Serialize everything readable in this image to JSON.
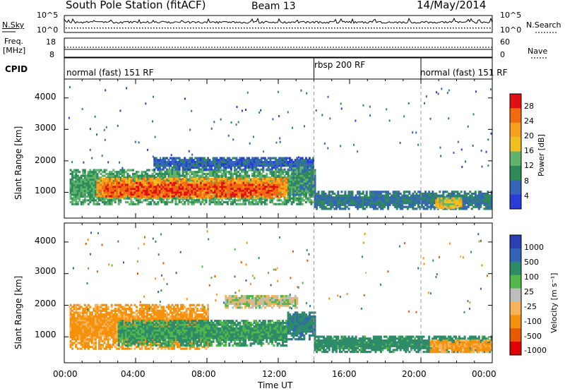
{
  "header": {
    "station": "South Pole Station (fitACF)",
    "beam": "Beam 13",
    "date": "14/May/2014"
  },
  "strips": {
    "nsky_label": "N.Sky",
    "nsearch_label": "N.Search",
    "freq_label_1": "Freq.",
    "freq_label_2": "[MHz]",
    "nave_label": "Nave",
    "cpid_label": "CPID",
    "nsky_ticks": [
      "10^5",
      "10^0"
    ],
    "nsearch_ticks": [
      "10^5",
      "10^0"
    ],
    "freq_ticks": [
      "18",
      "8"
    ],
    "nave_ticks": [
      "60",
      "0"
    ],
    "cpid_segments": [
      {
        "label": "normal (fast) 151 RF",
        "start_hour": 0,
        "end_hour": 14
      },
      {
        "label": "rbsp 200 RF",
        "start_hour": 14,
        "end_hour": 20
      },
      {
        "label": "normal (fast) 151 RF",
        "start_hour": 20,
        "end_hour": 24
      }
    ]
  },
  "axes": {
    "ylabel": "Slant Range [km]",
    "xlabel": "Time UT",
    "xticks": [
      "00:00",
      "04:00",
      "08:00",
      "12:00",
      "16:00",
      "20:00",
      "00:00"
    ],
    "yticks": [
      "1000",
      "2000",
      "3000",
      "4000"
    ]
  },
  "colorbars": {
    "power_label": "Power [dB]",
    "power_ticks": [
      "4",
      "8",
      "12",
      "16",
      "20",
      "24",
      "28"
    ],
    "velocity_label": "Velocity  [m s⁻¹]",
    "velocity_ticks": [
      "1000",
      "500",
      "100",
      "25",
      "-25",
      "-100",
      "-500",
      "-1000"
    ]
  },
  "colors": {
    "power_scale": [
      "#2a3cd8",
      "#3465b8",
      "#2f8a5a",
      "#5fb36a",
      "#f0c020",
      "#f7a020",
      "#f26a10",
      "#e01010"
    ],
    "velocity_scale": [
      "#e00000",
      "#e85a00",
      "#f5910a",
      "#f7b25a",
      "#bdbdbd",
      "#52b64a",
      "#2e8b6a",
      "#3462b8",
      "#2a3fb3"
    ]
  },
  "chart_data": [
    {
      "type": "heatmap",
      "title": "",
      "quantity": "Power [dB]",
      "xlabel": "Time UT",
      "ylabel": "Slant Range [km]",
      "x_range_hours": [
        0,
        24
      ],
      "y_range_km": [
        180,
        4600
      ],
      "color_range": [
        0,
        32
      ],
      "color_ticks": [
        4,
        8,
        12,
        16,
        20,
        24,
        28
      ],
      "x_ticks": [
        "00:00",
        "04:00",
        "08:00",
        "12:00",
        "16:00",
        "20:00",
        "00:00"
      ],
      "y_ticks": [
        1000,
        2000,
        3000,
        4000
      ],
      "regions": [
        {
          "t0": 0.3,
          "t1": 14.0,
          "r0": 600,
          "r1": 1700,
          "dB": 12
        },
        {
          "t0": 1.8,
          "t1": 12.4,
          "r0": 800,
          "r1": 1450,
          "dB": 22
        },
        {
          "t0": 2.2,
          "t1": 12.0,
          "r0": 850,
          "r1": 1300,
          "dB": 27
        },
        {
          "t0": 5.0,
          "t1": 13.9,
          "r0": 1700,
          "r1": 2100,
          "dB": 6
        },
        {
          "t0": 12.8,
          "t1": 14.0,
          "r0": 900,
          "r1": 1800,
          "dB": 10
        },
        {
          "t0": 14.0,
          "t1": 24.0,
          "r0": 450,
          "r1": 1000,
          "dB": 8
        },
        {
          "t0": 20.8,
          "t1": 22.3,
          "r0": 480,
          "r1": 800,
          "dB": 18
        }
      ]
    },
    {
      "type": "heatmap",
      "title": "",
      "quantity": "Velocity [m s^-1]",
      "xlabel": "Time UT",
      "ylabel": "Slant Range [km]",
      "x_range_hours": [
        0,
        24
      ],
      "y_range_km": [
        180,
        4600
      ],
      "color_ticks": [
        1000,
        500,
        100,
        25,
        -25,
        -100,
        -500,
        -1000
      ],
      "x_ticks": [
        "00:00",
        "04:00",
        "08:00",
        "12:00",
        "16:00",
        "20:00",
        "00:00"
      ],
      "y_ticks": [
        1000,
        2000,
        3000,
        4000
      ],
      "regions": [
        {
          "t0": 0.3,
          "t1": 8.0,
          "r0": 600,
          "r1": 2000,
          "v": -150
        },
        {
          "t0": 3.0,
          "t1": 12.4,
          "r0": 700,
          "r1": 1500,
          "v": 120
        },
        {
          "t0": 9.0,
          "t1": 13.0,
          "r0": 1900,
          "r1": 2300,
          "v": 0
        },
        {
          "t0": 12.5,
          "t1": 14.0,
          "r0": 900,
          "r1": 1800,
          "v": 400
        },
        {
          "t0": 14.0,
          "t1": 24.0,
          "r0": 500,
          "r1": 1000,
          "v": 200
        },
        {
          "t0": 20.5,
          "t1": 24.0,
          "r0": 500,
          "r1": 900,
          "v": -120
        }
      ]
    }
  ]
}
